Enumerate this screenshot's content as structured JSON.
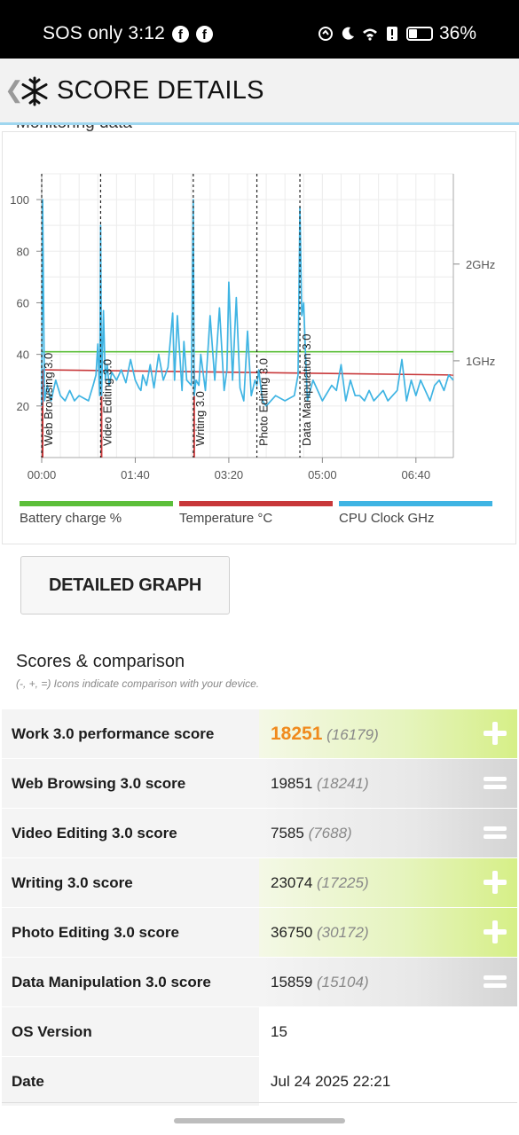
{
  "status_bar": {
    "left_text": "SOS only 3:12",
    "right_text": "36%",
    "battery_level_percent": 36
  },
  "app_bar": {
    "title": "SCORE DETAILS",
    "logo_icon": "snowflake-icon",
    "back_icon": "chevron-left-icon"
  },
  "monitoring": {
    "title": "Monitoring data"
  },
  "chart_data": {
    "type": "line",
    "x_ticks": [
      "00:00",
      "01:40",
      "03:20",
      "05:00",
      "06:40"
    ],
    "y_ticks_left": [
      20,
      40,
      60,
      80,
      100
    ],
    "y_ticks_right": [
      "1GHz",
      "2GHz"
    ],
    "ylim": [
      0,
      100
    ],
    "xlim_seconds": [
      0,
      440
    ],
    "markers": [
      {
        "label": "Web Browsing 3.0",
        "x_seconds": 0
      },
      {
        "label": "Video Editing 3.0",
        "x_seconds": 63
      },
      {
        "label": "Writing 3.0",
        "x_seconds": 162
      },
      {
        "label": "Photo Editing 3.0",
        "x_seconds": 230
      },
      {
        "label": "Data Manipulation 3.0",
        "x_seconds": 276
      }
    ],
    "series": [
      {
        "name": "Battery charge %",
        "color": "#5cbf3a",
        "x_seconds": [
          0,
          440
        ],
        "values": [
          41,
          41
        ]
      },
      {
        "name": "Temperature °C",
        "color": "#c8383a",
        "x_seconds": [
          0,
          440
        ],
        "values": [
          34,
          32
        ]
      },
      {
        "name": "CPU Clock GHz",
        "color": "#3fb4e3",
        "x_seconds": [
          0,
          1,
          3,
          6,
          10,
          15,
          20,
          25,
          30,
          35,
          40,
          45,
          50,
          55,
          58,
          60,
          62,
          63,
          64,
          66,
          68,
          70,
          72,
          75,
          80,
          85,
          90,
          95,
          100,
          104,
          106,
          108,
          112,
          116,
          120,
          125,
          130,
          135,
          140,
          142,
          145,
          150,
          152,
          155,
          160,
          162,
          163,
          165,
          168,
          170,
          175,
          180,
          185,
          190,
          195,
          198,
          200,
          204,
          208,
          212,
          216,
          220,
          224,
          228,
          230,
          232,
          236,
          240,
          250,
          260,
          270,
          274,
          276,
          278,
          280,
          282,
          284,
          290,
          300,
          310,
          315,
          320,
          325,
          330,
          335,
          340,
          345,
          350,
          355,
          360,
          365,
          370,
          375,
          380,
          385,
          390,
          395,
          400,
          405,
          410,
          415,
          420,
          425,
          430,
          435,
          440
        ],
        "values": [
          20,
          100,
          22,
          28,
          22,
          30,
          24,
          22,
          26,
          22,
          24,
          23,
          22,
          28,
          32,
          44,
          24,
          90,
          24,
          57,
          30,
          36,
          28,
          33,
          30,
          34,
          29,
          38,
          30,
          27,
          26,
          32,
          28,
          36,
          27,
          40,
          30,
          35,
          56,
          30,
          55,
          26,
          45,
          30,
          28,
          100,
          24,
          30,
          28,
          40,
          26,
          55,
          30,
          58,
          26,
          34,
          68,
          30,
          62,
          27,
          22,
          49,
          24,
          30,
          28,
          34,
          22,
          20,
          24,
          22,
          24,
          32,
          97,
          55,
          60,
          40,
          22,
          30,
          22,
          28,
          26,
          36,
          22,
          30,
          24,
          24,
          22,
          26,
          22,
          24,
          26,
          22,
          24,
          26,
          38,
          22,
          30,
          24,
          30,
          26,
          22,
          28,
          30,
          26,
          32,
          30
        ]
      }
    ],
    "legend": [
      "Battery charge %",
      "Temperature °C",
      "CPU Clock GHz"
    ]
  },
  "detailed_graph_button": "DETAILED GRAPH",
  "scores": {
    "title": "Scores & comparison",
    "subtitle": "(-, +, =) Icons indicate comparison with your device.",
    "rows": [
      {
        "name": "Work 3.0 performance score",
        "value": "18251",
        "compare": "(16179)",
        "indicator": "plus"
      },
      {
        "name": "Web Browsing 3.0 score",
        "value": "19851",
        "compare": "(18241)",
        "indicator": "equal"
      },
      {
        "name": "Video Editing 3.0 score",
        "value": "7585",
        "compare": "(7688)",
        "indicator": "equal"
      },
      {
        "name": "Writing 3.0 score",
        "value": "23074",
        "compare": "(17225)",
        "indicator": "plus"
      },
      {
        "name": "Photo Editing 3.0 score",
        "value": "36750",
        "compare": "(30172)",
        "indicator": "plus"
      },
      {
        "name": "Data Manipulation 3.0 score",
        "value": "15859",
        "compare": "(15104)",
        "indicator": "equal"
      },
      {
        "name": "OS Version",
        "value": "15",
        "compare": "",
        "indicator": "none"
      },
      {
        "name": "Date",
        "value": "Jul 24 2025 22:21",
        "compare": "",
        "indicator": "none"
      }
    ]
  }
}
